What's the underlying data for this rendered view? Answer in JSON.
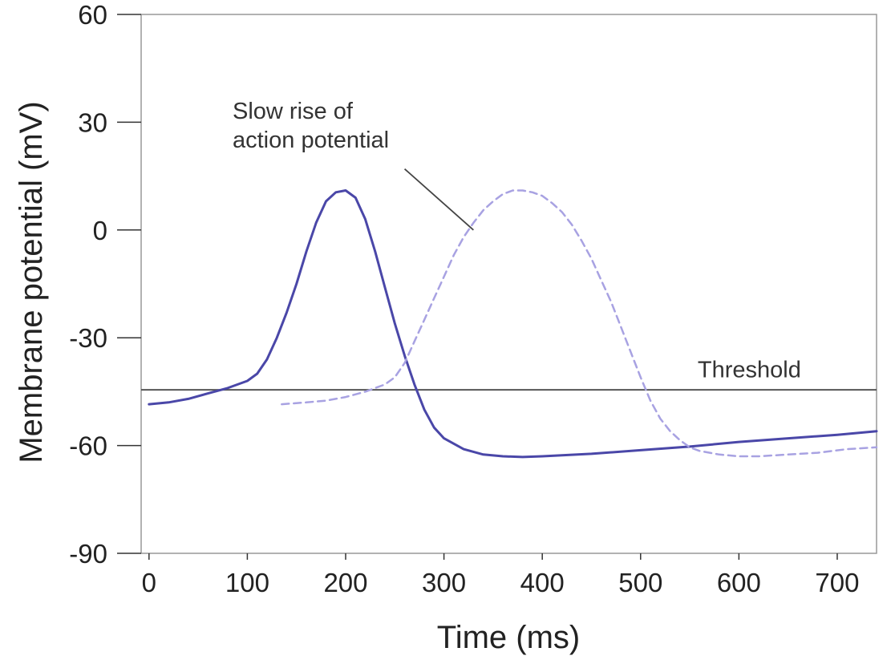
{
  "chart_data": {
    "type": "line",
    "xlabel": "Time (ms)",
    "ylabel": "Membrane potential (mV)",
    "xlim": [
      -8,
      740
    ],
    "ylim": [
      -90,
      60
    ],
    "x_ticks": [
      0,
      100,
      200,
      300,
      400,
      500,
      600,
      700
    ],
    "y_ticks": [
      60,
      30,
      0,
      -30,
      -60,
      -90
    ],
    "grid": false,
    "colors": {
      "normal": "#4a47a8",
      "slow": "#a8a2e2",
      "threshold": "#555555",
      "axis": "#999999"
    },
    "series": [
      {
        "style": "solid",
        "x": [
          0,
          20,
          40,
          60,
          80,
          100,
          110,
          120,
          130,
          140,
          150,
          160,
          170,
          180,
          190,
          200,
          210,
          220,
          230,
          240,
          250,
          260,
          270,
          280,
          290,
          300,
          320,
          340,
          360,
          380,
          400,
          450,
          500,
          550,
          600,
          650,
          700,
          740
        ],
        "y": [
          -48.5,
          -48,
          -47,
          -45.5,
          -44,
          -42,
          -40,
          -36,
          -30,
          -23,
          -15,
          -6,
          2,
          8,
          10.5,
          11,
          9,
          3,
          -6,
          -16,
          -26,
          -35,
          -43,
          -50,
          -55,
          -58,
          -61,
          -62.5,
          -63,
          -63.2,
          -63,
          -62.3,
          -61.3,
          -60.3,
          -59,
          -58,
          -57,
          -56
        ]
      },
      {
        "style": "dashed",
        "x": [
          135,
          160,
          180,
          200,
          220,
          240,
          250,
          260,
          270,
          280,
          290,
          300,
          310,
          320,
          330,
          340,
          350,
          360,
          370,
          380,
          390,
          400,
          410,
          420,
          430,
          440,
          450,
          460,
          470,
          480,
          490,
          500,
          510,
          520,
          530,
          540,
          550,
          560,
          580,
          600,
          620,
          650,
          680,
          710,
          740
        ],
        "y": [
          -48.5,
          -48,
          -47.5,
          -46.5,
          -45,
          -43,
          -41,
          -37,
          -31,
          -25,
          -19,
          -13,
          -7,
          -2,
          2,
          5.5,
          8,
          10,
          11,
          11,
          10.5,
          9.5,
          7.5,
          5,
          1.5,
          -3,
          -8,
          -14,
          -20,
          -27,
          -34,
          -41,
          -47.5,
          -52.5,
          -56,
          -58.5,
          -60.5,
          -61.5,
          -62.5,
          -63,
          -63,
          -62.5,
          -62,
          -61,
          -60.5
        ]
      }
    ],
    "threshold_y": -44.5,
    "annotations": {
      "threshold": "Threshold",
      "slow_rise_line1": "Slow rise of",
      "slow_rise_line2": "action potential"
    },
    "leader_line": {
      "from": [
        260,
        17
      ],
      "to": [
        330,
        0
      ]
    },
    "threshold_label_at": [
      558,
      -41
    ],
    "slow_rise_label_at": [
      85,
      31
    ]
  }
}
